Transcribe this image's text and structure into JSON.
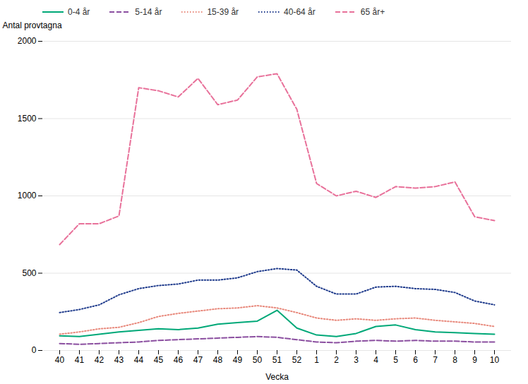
{
  "chart_data": {
    "type": "line",
    "xlabel": "Vecka",
    "ylabel": "Antal provtagna",
    "categories": [
      "40",
      "41",
      "42",
      "43",
      "44",
      "45",
      "46",
      "47",
      "48",
      "49",
      "50",
      "51",
      "52",
      "1",
      "2",
      "3",
      "4",
      "5",
      "6",
      "7",
      "8",
      "9",
      "10"
    ],
    "series": [
      {
        "name": "0-4 år",
        "color": "#00A878",
        "line_style": "solid",
        "values": [
          95,
          90,
          105,
          120,
          130,
          140,
          135,
          145,
          170,
          180,
          190,
          260,
          145,
          100,
          90,
          110,
          155,
          165,
          135,
          120,
          115,
          110,
          105
        ]
      },
      {
        "name": "5-14 år",
        "color": "#8B4FA0",
        "line_style": "dashed",
        "values": [
          45,
          40,
          45,
          50,
          55,
          65,
          70,
          75,
          80,
          85,
          90,
          85,
          70,
          55,
          50,
          60,
          65,
          60,
          65,
          60,
          60,
          55,
          55
        ]
      },
      {
        "name": "15-39 år",
        "color": "#E8897C",
        "line_style": "dotted",
        "values": [
          105,
          120,
          140,
          150,
          180,
          220,
          240,
          255,
          270,
          275,
          290,
          275,
          245,
          210,
          195,
          205,
          195,
          205,
          210,
          195,
          185,
          175,
          155
        ]
      },
      {
        "name": "40-64 år",
        "color": "#1F3B8C",
        "line_style": "dotted",
        "values": [
          245,
          265,
          295,
          360,
          400,
          420,
          430,
          455,
          455,
          470,
          510,
          530,
          520,
          415,
          365,
          365,
          410,
          415,
          400,
          395,
          375,
          320,
          295
        ]
      },
      {
        "name": "65 år+",
        "color": "#E8719A",
        "line_style": "dashed",
        "values": [
          685,
          820,
          820,
          870,
          1700,
          1680,
          1640,
          1760,
          1590,
          1620,
          1770,
          1790,
          1560,
          1080,
          1000,
          1030,
          990,
          1060,
          1050,
          1060,
          1090,
          865,
          840
        ]
      }
    ],
    "ylim": [
      0,
      2000
    ],
    "yticks": [
      0,
      500,
      1000,
      1500,
      2000
    ],
    "grid": true,
    "legend": "top"
  }
}
